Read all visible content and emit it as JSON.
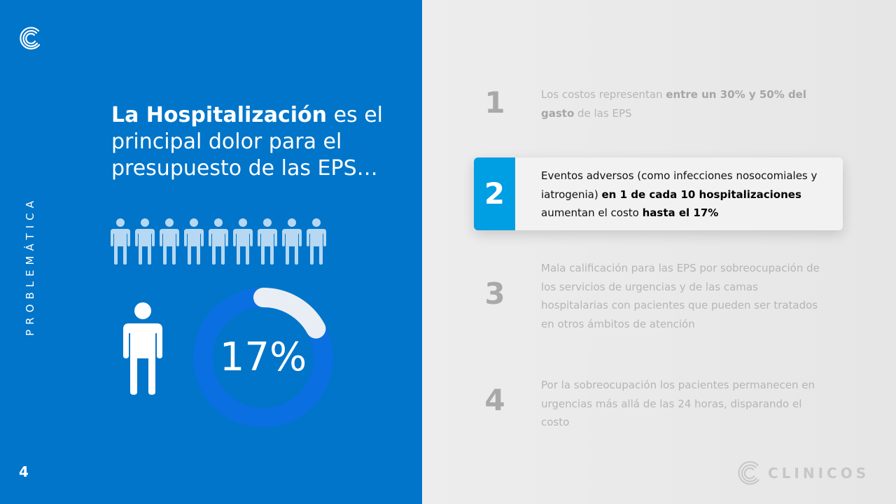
{
  "left_panel": {
    "section_label": "PROBLEMÁTICA",
    "page_number": "4",
    "headline_strong": "La Hospitalización",
    "headline_rest": " es el principal dolor para el presupuesto de las EPS…",
    "stat": {
      "value": "17%",
      "fraction": 0.17
    },
    "people_row_count": 9,
    "colors": {
      "panel": "#0075c9",
      "donut_track": "#0a6fe0",
      "donut_arc": "#e9eef5",
      "people": "#b7d8f2"
    }
  },
  "items": [
    {
      "number": "1",
      "before": "Los costos representan ",
      "bold": "entre un 30% y 50% del gasto",
      "middle": " de las EPS",
      "bold2": "",
      "after": ""
    },
    {
      "number": "2",
      "before": "Eventos adversos (como infecciones nosocomiales y iatrogenia) ",
      "bold": "en 1 de cada 10 hospitalizaciones",
      "middle": " aumentan el costo ",
      "bold2": "hasta el 17%",
      "after": "",
      "active": true
    },
    {
      "number": "3",
      "before": "Mala calificación para las EPS por sobreocupación de los servicios de urgencias y de las camas hospitalarias con pacientes que pueden ser tratados en otros ámbitos de atención",
      "bold": "",
      "middle": "",
      "bold2": "",
      "after": ""
    },
    {
      "number": "4",
      "before": "Por la sobreocupación los pacientes permanecen en urgencias más allá de las 24 horas, disparando el costo",
      "bold": "",
      "middle": "",
      "bold2": "",
      "after": ""
    }
  ],
  "brand": {
    "name": "CLINICOS",
    "logo_icon": "clinicos-crescent-logo"
  },
  "accent": "#009ee3"
}
